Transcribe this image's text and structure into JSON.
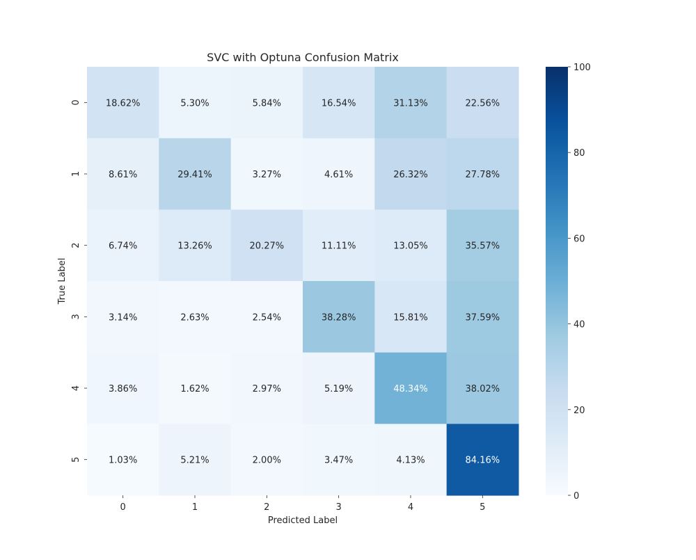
{
  "chart_data": {
    "type": "heatmap",
    "title": "SVC with Optuna Confusion Matrix",
    "xlabel": "Predicted Label",
    "ylabel": "True Label",
    "x_categories": [
      "0",
      "1",
      "2",
      "3",
      "4",
      "5"
    ],
    "y_categories": [
      "0",
      "1",
      "2",
      "3",
      "4",
      "5"
    ],
    "values": [
      [
        18.62,
        5.3,
        5.84,
        16.54,
        31.13,
        22.56
      ],
      [
        8.61,
        29.41,
        3.27,
        4.61,
        26.32,
        27.78
      ],
      [
        6.74,
        13.26,
        20.27,
        11.11,
        13.05,
        35.57
      ],
      [
        3.14,
        2.63,
        2.54,
        38.28,
        15.81,
        37.59
      ],
      [
        3.86,
        1.62,
        2.97,
        5.19,
        48.34,
        38.02
      ],
      [
        1.03,
        5.21,
        2.0,
        3.47,
        4.13,
        84.16
      ]
    ],
    "cell_labels": [
      [
        "18.62%",
        "5.30%",
        "5.84%",
        "16.54%",
        "31.13%",
        "22.56%"
      ],
      [
        "8.61%",
        "29.41%",
        "3.27%",
        "4.61%",
        "26.32%",
        "27.78%"
      ],
      [
        "6.74%",
        "13.26%",
        "20.27%",
        "11.11%",
        "13.05%",
        "35.57%"
      ],
      [
        "3.14%",
        "2.63%",
        "2.54%",
        "38.28%",
        "15.81%",
        "37.59%"
      ],
      [
        "3.86%",
        "1.62%",
        "2.97%",
        "5.19%",
        "48.34%",
        "38.02%"
      ],
      [
        "1.03%",
        "5.21%",
        "2.00%",
        "3.47%",
        "4.13%",
        "84.16%"
      ]
    ],
    "colorbar": {
      "range": [
        0,
        100
      ],
      "ticks": [
        0,
        20,
        40,
        60,
        80,
        100
      ],
      "colormap": "Blues"
    },
    "grid": false
  }
}
